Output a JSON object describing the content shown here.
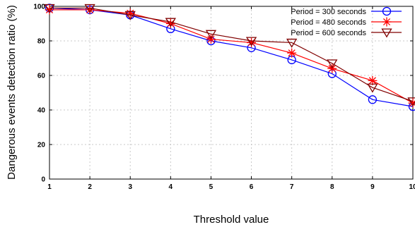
{
  "chart_data": {
    "type": "line",
    "title": "",
    "xlabel": "Threshold value",
    "ylabel": "Dangerous events detection ratio (%)",
    "x": [
      1,
      2,
      3,
      4,
      5,
      6,
      7,
      8,
      9,
      10
    ],
    "xlim": [
      1,
      10
    ],
    "ylim": [
      0,
      100
    ],
    "xticks": [
      "1",
      "2",
      "3",
      "4",
      "5",
      "6",
      "7",
      "8",
      "9",
      "10"
    ],
    "yticks": [
      "0",
      "20",
      "40",
      "60",
      "80",
      "100"
    ],
    "grid": true,
    "legend_position": "top-right",
    "series": [
      {
        "name": "Period = 300 seconds",
        "color": "#0000ff",
        "marker": "circle",
        "values": [
          99,
          98,
          95,
          87,
          80,
          76,
          69,
          61,
          46,
          42
        ]
      },
      {
        "name": "Period = 480 seconds",
        "color": "#ff0000",
        "marker": "asterisk",
        "values": [
          98,
          98,
          96,
          90,
          81,
          79,
          73,
          64,
          57,
          44
        ]
      },
      {
        "name": "Period = 600 seconds",
        "color": "#800000",
        "marker": "triangle-down",
        "values": [
          99,
          99,
          95,
          91,
          84,
          80,
          79,
          67,
          53,
          45
        ]
      }
    ]
  }
}
